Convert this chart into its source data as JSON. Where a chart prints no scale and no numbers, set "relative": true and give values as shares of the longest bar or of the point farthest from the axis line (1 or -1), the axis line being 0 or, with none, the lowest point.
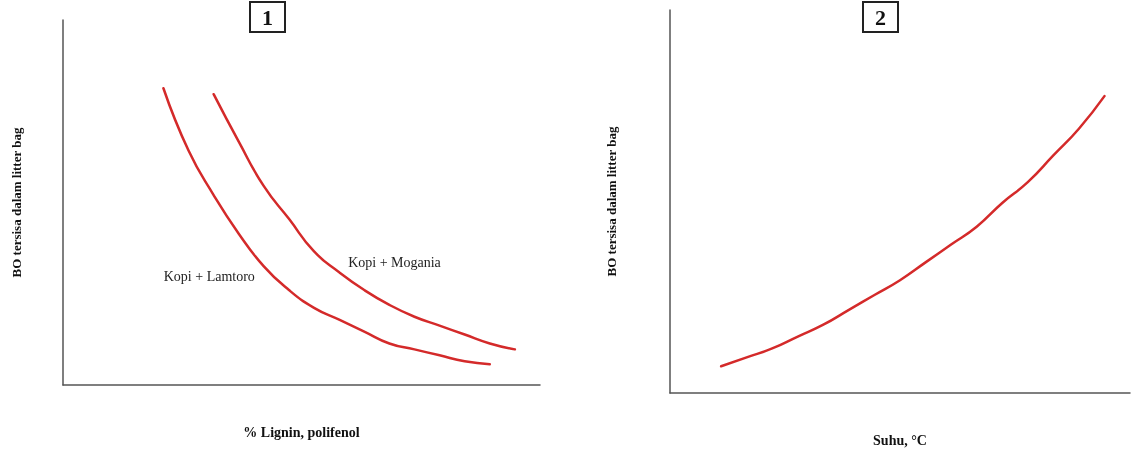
{
  "chart_data": [
    {
      "type": "line",
      "title": "1",
      "xlabel": "% Lignin, polifenol",
      "ylabel": "BO tersisa dalam litter bag",
      "relative": true,
      "grid": false,
      "legend": false,
      "marker": "none",
      "line_style": "solid",
      "categories": [
        null,
        null,
        null,
        null,
        null,
        null,
        null,
        null,
        null,
        null,
        null,
        null,
        null,
        null,
        null,
        null,
        null,
        null,
        null,
        null
      ],
      "series": [
        {
          "name": "Kopi + Lamtoro",
          "color": "#d42a2a",
          "values": [
            null,
            null,
            null,
            null,
            1,
            0.79,
            0.64,
            0.51,
            0.4,
            0.32,
            0.26,
            0.22,
            0.18,
            0.14,
            0.12,
            0.1,
            0.08,
            0.07,
            null,
            null
          ]
        },
        {
          "name": "Kopi + Mogania",
          "color": "#d42a2a",
          "values": [
            null,
            null,
            null,
            null,
            null,
            null,
            0.98,
            0.82,
            0.67,
            0.56,
            0.45,
            0.38,
            0.32,
            0.27,
            0.23,
            0.2,
            0.17,
            0.14,
            0.12,
            null
          ]
        }
      ]
    },
    {
      "type": "line",
      "title": "2",
      "xlabel": "Suhu, °C",
      "ylabel": "BO tersisa dalam litter bag",
      "relative": true,
      "grid": false,
      "legend": false,
      "marker": "none",
      "line_style": "solid",
      "categories": [
        null,
        null,
        null,
        null,
        null,
        null,
        null,
        null,
        null,
        null,
        null,
        null,
        null,
        null,
        null,
        null,
        null,
        null,
        null
      ],
      "series": [
        {
          "color": "#d42a2a",
          "values": [
            null,
            null,
            0.09,
            0.12,
            0.15,
            0.19,
            0.23,
            0.28,
            0.33,
            0.38,
            0.44,
            0.5,
            0.56,
            0.64,
            0.71,
            0.8,
            0.89,
            1,
            null
          ]
        }
      ]
    }
  ]
}
